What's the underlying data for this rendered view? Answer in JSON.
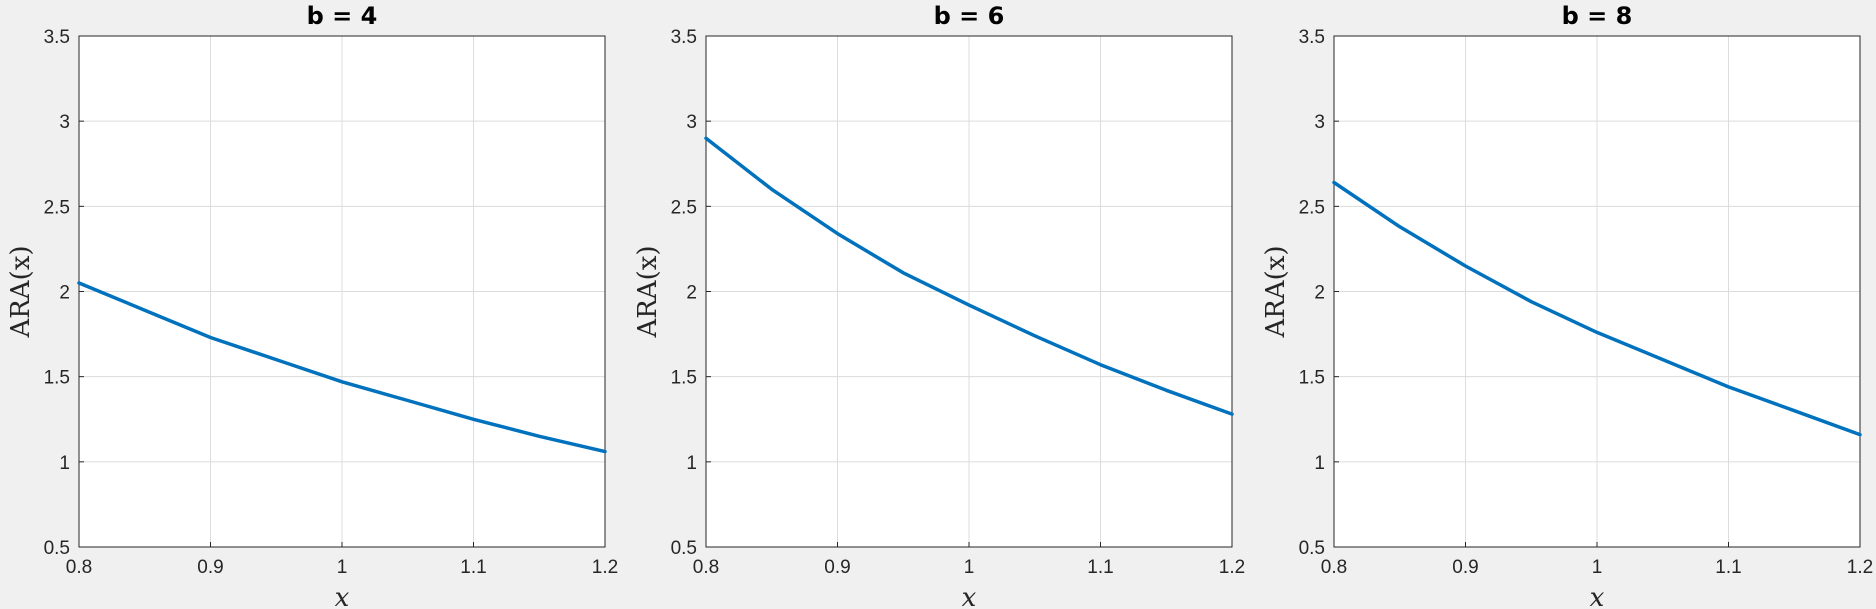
{
  "chart_data": [
    {
      "type": "line",
      "title": "b = 4",
      "xlabel": "x",
      "ylabel": "ARA(x)",
      "xlim": [
        0.8,
        1.2
      ],
      "ylim": [
        0.5,
        3.5
      ],
      "xticks": [
        "0.8",
        "0.9",
        "1",
        "1.1",
        "1.2"
      ],
      "yticks": [
        "0.5",
        "1",
        "1.5",
        "2",
        "2.5",
        "3",
        "3.5"
      ],
      "grid": true,
      "series": [
        {
          "x": [
            0.8,
            0.85,
            0.9,
            0.95,
            1.0,
            1.05,
            1.1,
            1.15,
            1.2
          ],
          "y": [
            2.05,
            1.89,
            1.73,
            1.6,
            1.47,
            1.36,
            1.25,
            1.15,
            1.06
          ]
        }
      ]
    },
    {
      "type": "line",
      "title": "b = 6",
      "xlabel": "x",
      "ylabel": "ARA(x)",
      "xlim": [
        0.8,
        1.2
      ],
      "ylim": [
        0.5,
        3.5
      ],
      "xticks": [
        "0.8",
        "0.9",
        "1",
        "1.1",
        "1.2"
      ],
      "yticks": [
        "0.5",
        "1",
        "1.5",
        "2",
        "2.5",
        "3",
        "3.5"
      ],
      "grid": true,
      "series": [
        {
          "x": [
            0.8,
            0.85,
            0.9,
            0.95,
            1.0,
            1.05,
            1.1,
            1.15,
            1.2
          ],
          "y": [
            2.9,
            2.6,
            2.34,
            2.11,
            1.92,
            1.74,
            1.57,
            1.42,
            1.28
          ]
        }
      ]
    },
    {
      "type": "line",
      "title": "b = 8",
      "xlabel": "x",
      "ylabel": "ARA(x)",
      "xlim": [
        0.8,
        1.2
      ],
      "ylim": [
        0.5,
        3.5
      ],
      "xticks": [
        "0.8",
        "0.9",
        "1",
        "1.1",
        "1.2"
      ],
      "yticks": [
        "0.5",
        "1",
        "1.5",
        "2",
        "2.5",
        "3",
        "3.5"
      ],
      "grid": true,
      "series": [
        {
          "x": [
            0.8,
            0.85,
            0.9,
            0.95,
            1.0,
            1.05,
            1.1,
            1.15,
            1.2
          ],
          "y": [
            2.64,
            2.38,
            2.15,
            1.94,
            1.76,
            1.6,
            1.44,
            1.3,
            1.16
          ]
        }
      ]
    }
  ],
  "colors": {
    "line": "#0072BD",
    "background": "#f0f0f0",
    "axes_bg": "#ffffff"
  }
}
